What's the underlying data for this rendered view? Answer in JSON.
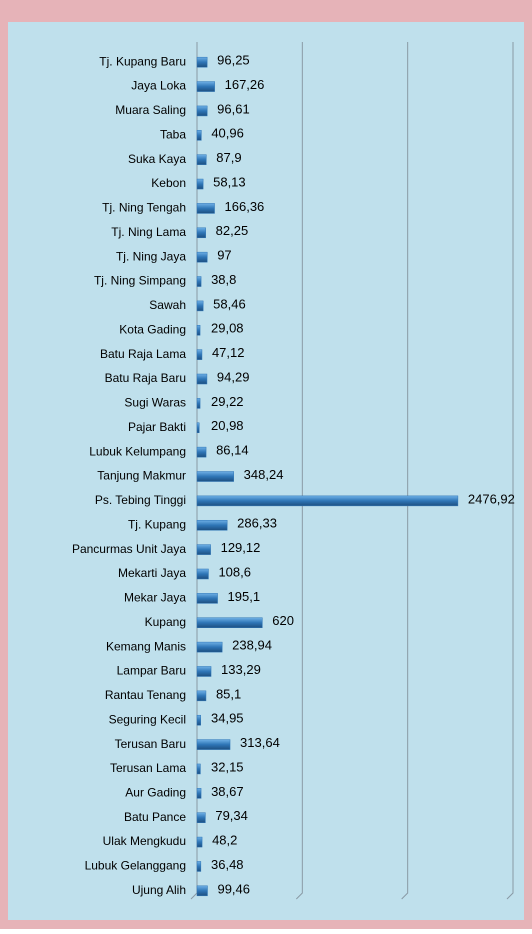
{
  "chart_data": {
    "type": "hbar",
    "categories": [
      "Tj. Kupang Baru",
      "Jaya Loka",
      "Muara Saling",
      "Taba",
      "Suka Kaya",
      "Kebon",
      "Tj. Ning Tengah",
      "Tj. Ning Lama",
      "Tj. Ning Jaya",
      "Tj. Ning Simpang",
      "Sawah",
      "Kota Gading",
      "Batu Raja Lama",
      "Batu Raja Baru",
      "Sugi Waras",
      "Pajar Bakti",
      "Lubuk Kelumpang",
      "Tanjung Makmur",
      "Ps. Tebing Tinggi",
      "Tj. Kupang",
      "Pancurmas Unit Jaya",
      "Mekarti Jaya",
      "Mekar Jaya",
      "Kupang",
      "Kemang Manis",
      "Lampar Baru",
      "Rantau Tenang",
      "Seguring Kecil",
      "Terusan Baru",
      "Terusan Lama",
      "Aur Gading",
      "Batu Pance",
      "Ulak Mengkudu",
      "Lubuk Gelanggang",
      "Ujung Alih"
    ],
    "values": [
      96.25,
      167.26,
      96.61,
      40.96,
      87.9,
      58.13,
      166.36,
      82.25,
      97,
      38.8,
      58.46,
      29.08,
      47.12,
      94.29,
      29.22,
      20.98,
      86.14,
      348.24,
      2476.92,
      286.33,
      129.12,
      108.6,
      195.1,
      620,
      238.94,
      133.29,
      85.1,
      34.95,
      313.64,
      32.15,
      38.67,
      79.34,
      48.2,
      36.48,
      99.46
    ],
    "value_labels": [
      "96,25",
      "167,26",
      "96,61",
      "40,96",
      "87,9",
      "58,13",
      "166,36",
      "82,25",
      "97",
      "38,8",
      "58,46",
      "29,08",
      "47,12",
      "94,29",
      "29,22",
      "20,98",
      "86,14",
      "348,24",
      "2476,92",
      "286,33",
      "129,12",
      "108,6",
      "195,1",
      "620",
      "238,94",
      "133,29",
      "85,1",
      "34,95",
      "313,64",
      "32,15",
      "38,67",
      "79,34",
      "48,2",
      "36,48",
      "99,46"
    ],
    "color": "#2e75b6",
    "xlim": [
      0,
      3000
    ],
    "xticks": [
      0,
      1000,
      2000,
      3000
    ],
    "grid": true
  }
}
